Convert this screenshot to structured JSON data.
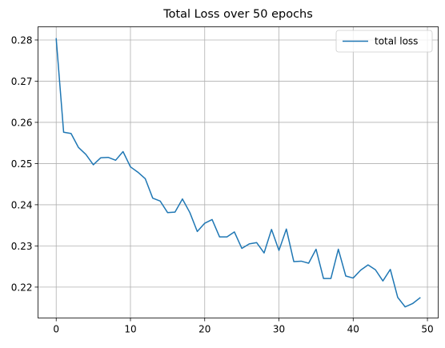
{
  "chart_data": {
    "type": "line",
    "title": "Total Loss over 50 epochs",
    "xlabel": "",
    "ylabel": "",
    "xlim": [
      -2.45,
      51.45
    ],
    "ylim": [
      0.2125,
      0.2832
    ],
    "x_ticks": [
      0,
      10,
      20,
      30,
      40,
      50
    ],
    "y_ticks": [
      0.22,
      0.23,
      0.24,
      0.25,
      0.26,
      0.27,
      0.28
    ],
    "y_tick_labels": [
      "0.22",
      "0.23",
      "0.24",
      "0.25",
      "0.26",
      "0.27",
      "0.28"
    ],
    "grid": true,
    "legend": {
      "position": "top-right",
      "entries": [
        "total loss"
      ]
    },
    "series": [
      {
        "name": "total loss",
        "color": "#1f77b4",
        "x": [
          0,
          1,
          2,
          3,
          4,
          5,
          6,
          7,
          8,
          9,
          10,
          11,
          12,
          13,
          14,
          15,
          16,
          17,
          18,
          19,
          20,
          21,
          22,
          23,
          24,
          25,
          26,
          27,
          28,
          29,
          30,
          31,
          32,
          33,
          34,
          35,
          36,
          37,
          38,
          39,
          40,
          41,
          42,
          43,
          44,
          45,
          46,
          47,
          48,
          49
        ],
        "values": [
          0.2803,
          0.2576,
          0.2573,
          0.2539,
          0.2522,
          0.2497,
          0.2514,
          0.2515,
          0.2508,
          0.2529,
          0.2492,
          0.2479,
          0.2463,
          0.2416,
          0.2409,
          0.2381,
          0.2382,
          0.2414,
          0.2381,
          0.2335,
          0.2355,
          0.2364,
          0.2322,
          0.2322,
          0.2334,
          0.2294,
          0.2305,
          0.2308,
          0.2283,
          0.234,
          0.2289,
          0.2341,
          0.2262,
          0.2263,
          0.2258,
          0.2292,
          0.2221,
          0.2221,
          0.2292,
          0.2227,
          0.2222,
          0.2241,
          0.2254,
          0.2242,
          0.2215,
          0.2243,
          0.2175,
          0.2152,
          0.216,
          0.2174
        ]
      }
    ]
  }
}
